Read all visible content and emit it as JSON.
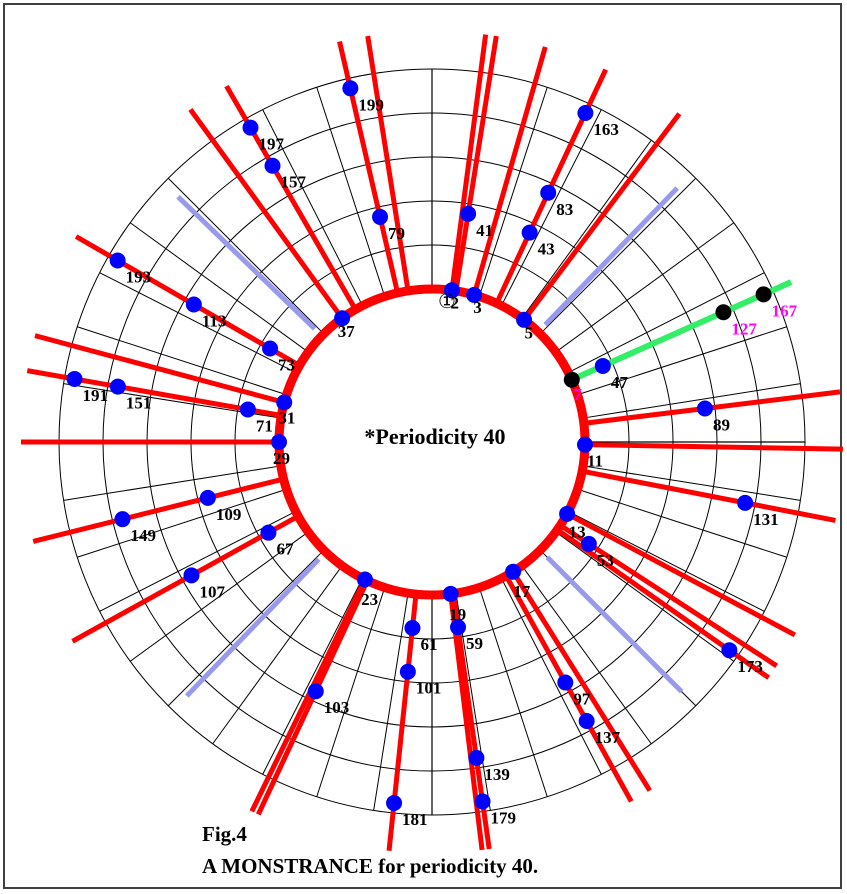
{
  "figure": {
    "label": "Fig.4",
    "caption": "A MONSTRANCE for periodicity 40.",
    "center_text": "*Periodicity 40",
    "origin_mark": "①"
  },
  "colors": {
    "grid": "#000000",
    "ring": "#ff0000",
    "rays": "#ff0000",
    "nodes": "#0000ff",
    "separators": "#9999ee",
    "highlight_ray": "#33ee66",
    "highlight_nodes": "#000000",
    "highlight_labels": "#ff00ff"
  },
  "residues": [
    {
      "label": "2",
      "angle": 7.5
    },
    {
      "label": "3",
      "angle": 16
    },
    {
      "label": "5",
      "angle": 37
    },
    {
      "label": "7",
      "angle": 66,
      "highlight": true
    },
    {
      "label": "11",
      "angle": 91
    },
    {
      "label": "13",
      "angle": 118
    },
    {
      "label": "17",
      "angle": 148
    },
    {
      "label": "19",
      "angle": 173
    },
    {
      "label": "23",
      "angle": 206
    },
    {
      "label": "29",
      "angle": 270
    },
    {
      "label": "31",
      "angle": 285
    },
    {
      "label": "37",
      "angle": 324
    }
  ],
  "primes": [
    {
      "label": "41",
      "angle": 9,
      "ring": 2
    },
    {
      "label": "83",
      "angle": 25,
      "ring": 3
    },
    {
      "label": "163",
      "angle": 25,
      "ring": 5
    },
    {
      "label": "43",
      "angle": 25,
      "ring": 2
    },
    {
      "label": "47",
      "angle": 66,
      "ring": 1
    },
    {
      "label": "127",
      "angle": 66,
      "ring": 4,
      "highlight": true
    },
    {
      "label": "167",
      "angle": 66,
      "ring": 5,
      "highlight": true
    },
    {
      "label": "89",
      "angle": 83,
      "ring": 3
    },
    {
      "label": "131",
      "angle": 101,
      "ring": 4
    },
    {
      "label": "53",
      "angle": 123,
      "ring": 1
    },
    {
      "label": "173",
      "angle": 125,
      "ring": 5
    },
    {
      "label": "97",
      "angle": 151,
      "ring": 3
    },
    {
      "label": "137",
      "angle": 151,
      "ring": 4
    },
    {
      "label": "59",
      "angle": 172,
      "ring": 1
    },
    {
      "label": "139",
      "angle": 172,
      "ring": 4
    },
    {
      "label": "179",
      "angle": 172,
      "ring": 5
    },
    {
      "label": "61",
      "angle": 186,
      "ring": 1
    },
    {
      "label": "101",
      "angle": 186,
      "ring": 2
    },
    {
      "label": "181",
      "angle": 186,
      "ring": 5
    },
    {
      "label": "103",
      "angle": 205,
      "ring": 3
    },
    {
      "label": "67",
      "angle": 241,
      "ring": 1
    },
    {
      "label": "107",
      "angle": 241,
      "ring": 3
    },
    {
      "label": "109",
      "angle": 256,
      "ring": 2
    },
    {
      "label": "149",
      "angle": 256,
      "ring": 4
    },
    {
      "label": "71",
      "angle": 280,
      "ring": 1
    },
    {
      "label": "151",
      "angle": 280,
      "ring": 4
    },
    {
      "label": "191",
      "angle": 280,
      "ring": 5
    },
    {
      "label": "73",
      "angle": 300,
      "ring": 1
    },
    {
      "label": "113",
      "angle": 300,
      "ring": 3
    },
    {
      "label": "193",
      "angle": 300,
      "ring": 5
    },
    {
      "label": "157",
      "angle": 330,
      "ring": 4
    },
    {
      "label": "197",
      "angle": 330,
      "ring": 5
    },
    {
      "label": "79",
      "angle": 347,
      "ring": 2
    },
    {
      "label": "199",
      "angle": 347,
      "ring": 5
    }
  ],
  "extra_rays": [
    {
      "angle": 351
    }
  ],
  "separators": [
    {
      "angle": 44
    },
    {
      "angle": 135
    },
    {
      "angle": 224
    },
    {
      "angle": 314
    }
  ]
}
